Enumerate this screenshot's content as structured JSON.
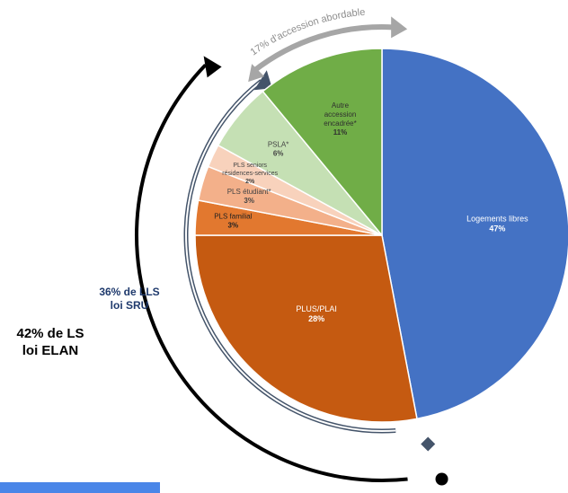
{
  "colors": {
    "blue": "#4472c4",
    "orange_dark": "#c55a11",
    "orange": "#e2782f",
    "orange_light": "#f3b08a",
    "peach": "#f8d2bc",
    "green_light": "#c5e0b4",
    "green": "#70ad47",
    "elan_arrow": "#000000",
    "sru_arrow": "#44546a",
    "accession_arrow": "#a6a6a6",
    "bottom_bar": "#4a86e8"
  },
  "annotations": {
    "elan": "42% de LS\nloi ELAN",
    "sru": "36% de LLS\nloi SRU",
    "accession": "17% d'accession abordable"
  },
  "chart_data": {
    "type": "pie",
    "title": "",
    "slices": [
      {
        "label": "Logements libres",
        "value": 47,
        "value_label": "47%",
        "color_key": "blue"
      },
      {
        "label": "PLUS/PLAI",
        "value": 28,
        "value_label": "28%",
        "color_key": "orange_dark"
      },
      {
        "label": "PLS familial",
        "value": 3,
        "value_label": "3%",
        "color_key": "orange"
      },
      {
        "label": "PLS étudiant*",
        "value": 3,
        "value_label": "3%",
        "color_key": "orange_light"
      },
      {
        "label": "PLS seniors résidences-services",
        "value": 2,
        "value_label": "2%",
        "color_key": "peach"
      },
      {
        "label": "PSLA*",
        "value": 6,
        "value_label": "6%",
        "color_key": "green_light"
      },
      {
        "label": "Autre accession encadrée*",
        "value": 11,
        "value_label": "11%",
        "color_key": "green"
      }
    ]
  }
}
